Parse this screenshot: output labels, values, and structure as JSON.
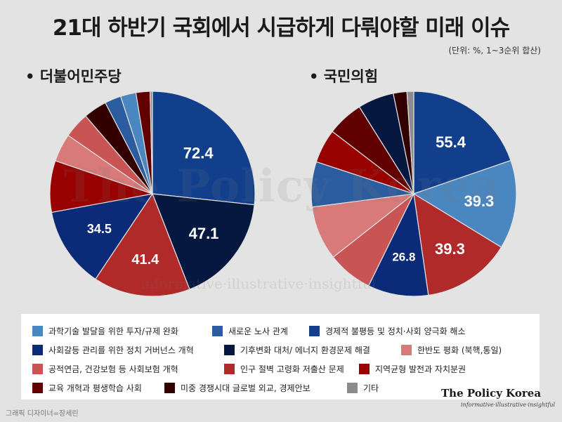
{
  "title": "21대 하반기 국회에서 시급하게 다뤄야할 미래 이슈",
  "unit_note": "(단위: %, 1~3순위 합산)",
  "legend": [
    {
      "label": "과학기술 발달을 위한 투자/규제 완화",
      "color": "#4a86c0"
    },
    {
      "label": "새로운 노사 관계",
      "color": "#2b5c9f"
    },
    {
      "label": "경제적 불평등 및 정치·사회 양극화 해소",
      "color": "#123f8c"
    },
    {
      "label": "사회갈등 관리를 위한 정치 거버넌스 개혁",
      "color": "#0b2b79"
    },
    {
      "label": "기후변화 대처/ 에너지 환경문제 해결",
      "color": "#06183f"
    },
    {
      "label": "한반도 평화 (북핵,통일)",
      "color": "#d97a7a"
    },
    {
      "label": "공적연금, 건강보험 등 사회보험 개혁",
      "color": "#c85454"
    },
    {
      "label": "인구 절벽 고령화 저출산 문제",
      "color": "#b02a2a"
    },
    {
      "label": "지역균형 발전과 자치분권",
      "color": "#990000"
    },
    {
      "label": "교육 개혁과 평생학습 사회",
      "color": "#600000"
    },
    {
      "label": "미중 경쟁시대 글로벌 외교, 경제안보",
      "color": "#330000"
    },
    {
      "label": "기타",
      "color": "#8c8c8c"
    }
  ],
  "chart_data": [
    {
      "type": "pie",
      "title": "더불어민주당",
      "categories": [
        "과학기술 발달을 위한 투자/규제 완화",
        "새로운 노사 관계",
        "경제적 불평등 및 정치·사회 양극화 해소",
        "사회갈등 관리를 위한 정치 거버넌스 개혁",
        "기후변화 대처/ 에너지 환경문제 해결",
        "한반도 평화 (북핵,통일)",
        "공적연금, 건강보험 등 사회보험 개혁",
        "인구 절벽 고령화 저출산 문제",
        "지역균형 발전과 자치분권",
        "교육 개혁과 평생학습 사회",
        "미중 경쟁시대 글로벌 외교, 경제안보",
        "기타"
      ],
      "clockwise_from_top": [
        "경제적 불평등 및 정치·사회 양극화 해소",
        "기후변화 대처/ 에너지 환경문제 해결",
        "인구 절벽 고령화 저출산 문제",
        "사회갈등 관리를 위한 정치 거버넌스 개혁",
        "지역균형 발전과 자치분권",
        "한반도 평화 (북핵,통일)",
        "공적연금, 건강보험 등 사회보험 개혁",
        "미중 경쟁시대 글로벌 외교, 경제안보",
        "새로운 노사 관계",
        "과학기술 발달을 위한 투자/규제 완화",
        "교육 개혁과 평생학습 사회",
        "기타"
      ],
      "values_clockwise": [
        72.4,
        47.1,
        41.4,
        34.5,
        22.0,
        12.0,
        11.0,
        10.0,
        7.0,
        6.6,
        6.0,
        1.0
      ],
      "labels_shown": [
        "72.4",
        "47.1",
        "41.4",
        "34.5"
      ]
    },
    {
      "type": "pie",
      "title": "국민의힘",
      "clockwise_from_top": [
        "경제적 불평등 및 정치·사회 양극화 해소",
        "과학기술 발달을 위한 투자/규제 완화",
        "인구 절벽 고령화 저출산 문제",
        "사회갈등 관리를 위한 정치 거버넌스 개혁",
        "공적연금, 건강보험 등 사회보험 개혁",
        "한반도 평화 (북핵,통일)",
        "새로운 노사 관계",
        "지역균형 발전과 자치분권",
        "교육 개혁과 평생학습 사회",
        "기후변화 대처/ 에너지 환경문제 해결",
        "미중 경쟁시대 글로벌 외교, 경제안보",
        "기타"
      ],
      "values_clockwise": [
        55.4,
        39.3,
        39.3,
        26.8,
        20.0,
        24.0,
        20.0,
        15.0,
        16.0,
        16.0,
        6.0,
        3.0
      ],
      "labels_shown": [
        "55.4",
        "39.3",
        "39.3",
        "26.8"
      ]
    }
  ],
  "watermark": "The Policy Korea",
  "watermark_tagline": "informative·illustrative·insightful",
  "brand": "The Policy Korea",
  "brand_tagline": "informative·illustrative·insightful",
  "credit": "그래픽 디자이너=장세린"
}
